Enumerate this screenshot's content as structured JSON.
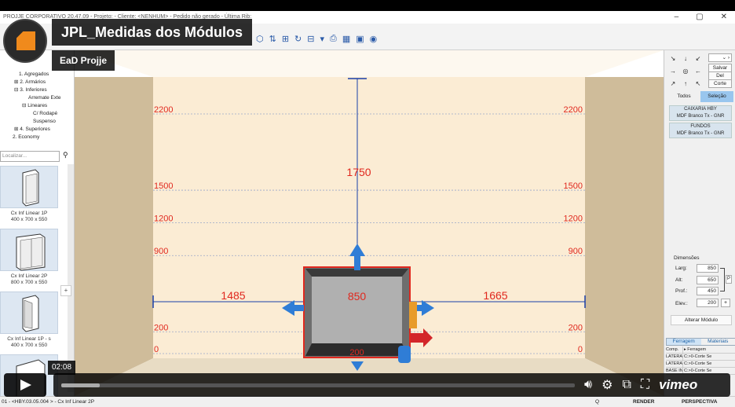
{
  "window": {
    "title": "PROJJE CORPORATIVO 20.47.09 - Projeto: - Cliente: <NENHUM> - Pedido não gerado - Última Rib:",
    "min": "–",
    "max": "▢",
    "close": "✕"
  },
  "video": {
    "title": "JPL_Medidas dos Módulos",
    "channel": "EaD Projje",
    "time": "02:08",
    "progress": 0.075,
    "brand": "vimeo"
  },
  "tree": [
    "1. Agregados",
    "⊞ 2. Armários",
    "⊟ 3. Inferiores",
    "Arremate Exte",
    "⊟ Lineares",
    "C/ Rodapé",
    "Suspenso",
    "⊞ 4. Superiores",
    "2. Economy"
  ],
  "search": {
    "placeholder": "Localizar..."
  },
  "modules": [
    {
      "name": "Cx Inf Linear 1P",
      "size": "400 x 700 x 550"
    },
    {
      "name": "Cx Inf Linear 2P",
      "size": "800 x 700 x 550"
    },
    {
      "name": "Cx Inf Linear 1P - s",
      "size": "400 x 700 x 550"
    }
  ],
  "right": {
    "arrows": [
      "↘",
      "↓",
      "↙",
      "→",
      "◎",
      "←",
      "↗",
      "↑",
      "↖"
    ],
    "save": "Salvar",
    "del": "Del",
    "cut": "Corte",
    "tab_all": "Todos",
    "tab_sel": "Seleção",
    "materials": [
      {
        "name": "CAIXARIA HBY",
        "value": "MDF Branco Tx - GNR"
      },
      {
        "name": "FUNDOS",
        "value": "MDF Branco Tx - GNR"
      }
    ],
    "dims_title": "Dimensões",
    "larg_label": "Larg:",
    "larg": "850",
    "alt_label": "Alt:",
    "alt": "650",
    "prof_label": "Prof.:",
    "prof": "450",
    "elev_label": "Elev.:",
    "elev": "200",
    "p_btn": "P",
    "plus": "+",
    "alter": "Alterar Módulo",
    "tab_hw": "Ferragem",
    "tab_mat": "Materiais",
    "table": [
      [
        "Comp.",
        "▸ Ferragem"
      ],
      [
        "LATERAL ES",
        "C:>0-Corte Se"
      ],
      [
        "LATERAL D",
        "C:>0-Corte Se"
      ],
      [
        "BASE INFER",
        "C:>0-Corte Se"
      ]
    ]
  },
  "room": {
    "levels": [
      "2200",
      "1500",
      "1200",
      "900",
      "200",
      "0"
    ],
    "dim_top": "1750",
    "dim_left": "1485",
    "dim_width": "850",
    "dim_right": "1665",
    "dim_elev": "200"
  },
  "status": {
    "left": "01 - <HBY.03.05.004 > - Cx Inf Linear 2P",
    "q": "Q",
    "render": "RENDER",
    "persp": "PERSPECTIVA"
  },
  "colors": {
    "accent": "#1a3fa8",
    "dim_red": "#e0281e",
    "wall": "#fbecd4",
    "side_wall": "#cfbc9a"
  }
}
